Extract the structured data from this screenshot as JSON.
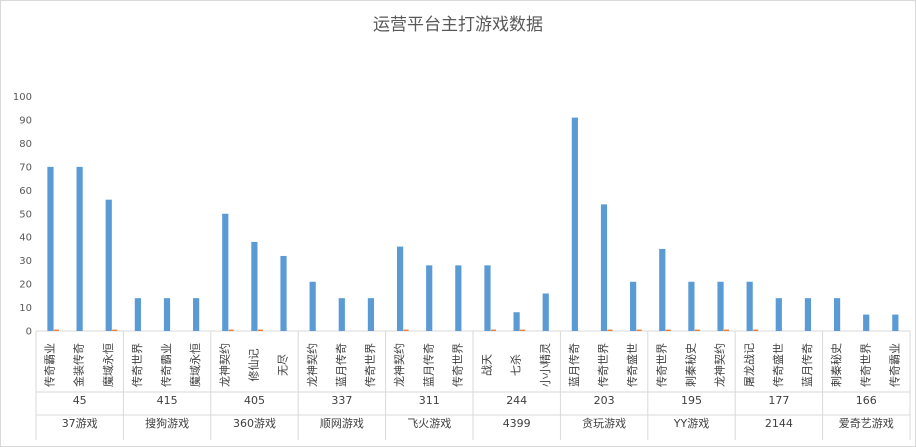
{
  "chart_data": {
    "type": "bar",
    "title": "运营平台主打游戏数据",
    "ylim": [
      0,
      100
    ],
    "yticks": [
      0,
      10,
      20,
      30,
      40,
      50,
      60,
      70,
      80,
      90,
      100
    ],
    "grid": false,
    "legend": "none",
    "colors": {
      "primary": "#5b9bd5",
      "secondary": "#ed7d31"
    },
    "groups": [
      {
        "platform": "37游戏",
        "count": "45",
        "games": [
          "传奇霸业",
          "金装传奇",
          "魔域永恒"
        ],
        "values": [
          70,
          70,
          56
        ],
        "secondary": [
          0.6,
          0,
          0.6
        ]
      },
      {
        "platform": "搜狗游戏",
        "count": "415",
        "games": [
          "传奇世界",
          "传奇霸业",
          "魔域永恒"
        ],
        "values": [
          14,
          14,
          14
        ],
        "secondary": [
          0,
          0,
          0
        ]
      },
      {
        "platform": "360游戏",
        "count": "405",
        "games": [
          "龙神契约",
          "修仙记",
          "无尽"
        ],
        "values": [
          50,
          38,
          32
        ],
        "secondary": [
          0.6,
          0.6,
          0
        ]
      },
      {
        "platform": "顺网游戏",
        "count": "337",
        "games": [
          "龙神契约",
          "蓝月传奇",
          "传奇世界"
        ],
        "values": [
          21,
          14,
          14
        ],
        "secondary": [
          0,
          0,
          0
        ]
      },
      {
        "platform": "飞火游戏",
        "count": "311",
        "games": [
          "龙神契约",
          "蓝月传奇",
          "传奇世界"
        ],
        "values": [
          36,
          28,
          28
        ],
        "secondary": [
          0.6,
          0,
          0
        ]
      },
      {
        "platform": "4399",
        "count": "244",
        "games": [
          "战天",
          "七杀",
          "小小精灵"
        ],
        "values": [
          28,
          8,
          16
        ],
        "secondary": [
          0.6,
          0.6,
          0
        ]
      },
      {
        "platform": "贪玩游戏",
        "count": "203",
        "games": [
          "蓝月传奇",
          "传奇世界",
          "传奇盛世"
        ],
        "values": [
          91,
          54,
          21
        ],
        "secondary": [
          0,
          0.6,
          0.6
        ]
      },
      {
        "platform": "YY游戏",
        "count": "195",
        "games": [
          "传奇世界",
          "刺秦秘史",
          "龙神契约"
        ],
        "values": [
          35,
          21,
          21
        ],
        "secondary": [
          0.6,
          0.6,
          0.6
        ]
      },
      {
        "platform": "2144",
        "count": "177",
        "games": [
          "屠龙战记",
          "传奇盛世",
          "蓝月传奇"
        ],
        "values": [
          21,
          14,
          14
        ],
        "secondary": [
          0.6,
          0,
          0
        ]
      },
      {
        "platform": "爱奇艺游戏",
        "count": "166",
        "games": [
          "刺秦秘史",
          "传奇世界",
          "传奇霸业"
        ],
        "values": [
          14,
          7,
          7
        ],
        "secondary": [
          0,
          0,
          0
        ]
      }
    ]
  }
}
